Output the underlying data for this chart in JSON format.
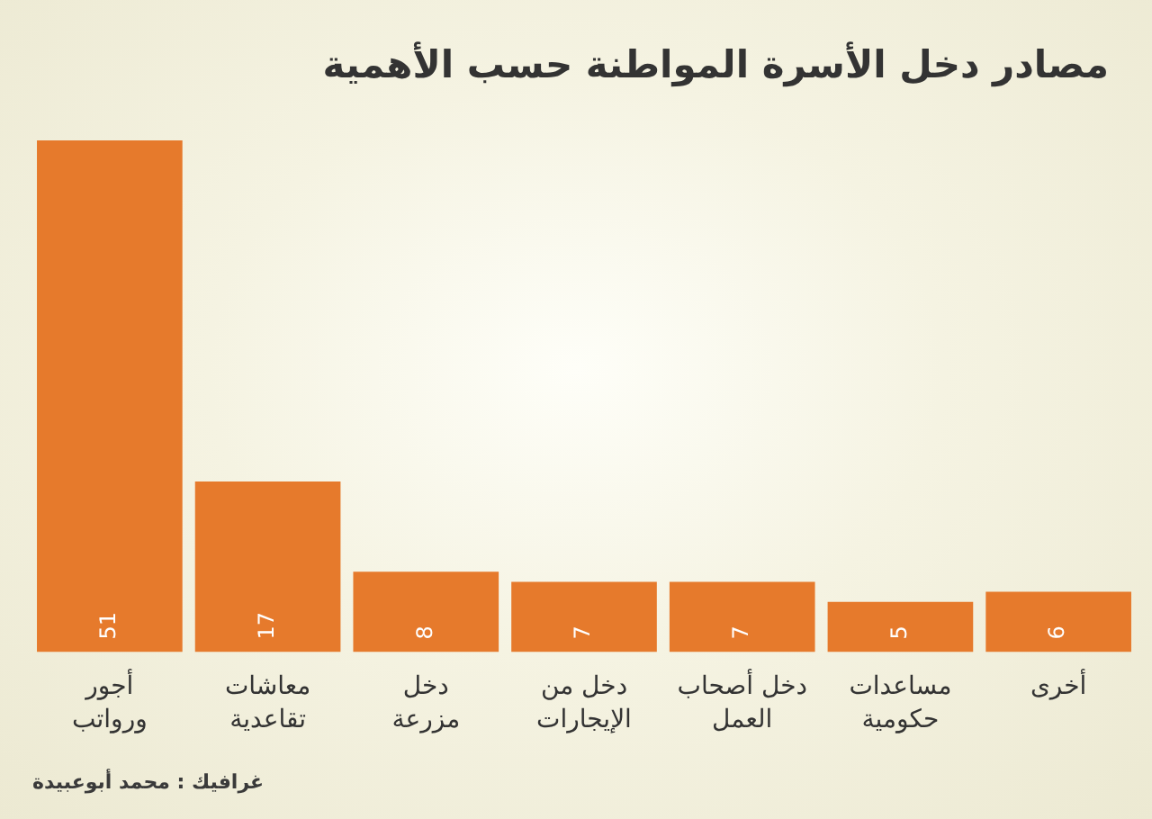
{
  "chart_data": {
    "type": "bar",
    "title": "مصادر دخل الأسرة المواطنة حسب الأهمية",
    "categories": [
      "أجور ورواتب",
      "معاشات تقاعدية",
      "دخل مزرعة",
      "دخل من الإيجارات",
      "دخل أصحاب العمل",
      "مساعدات حكومية",
      "أخرى"
    ],
    "values": [
      51,
      17,
      8,
      7,
      7,
      5,
      6
    ],
    "color": "#e67a2c",
    "data_labels": true,
    "tick_labels": "x",
    "annotations": [
      "غرافيك : محمد أبوعبيدة"
    ]
  }
}
